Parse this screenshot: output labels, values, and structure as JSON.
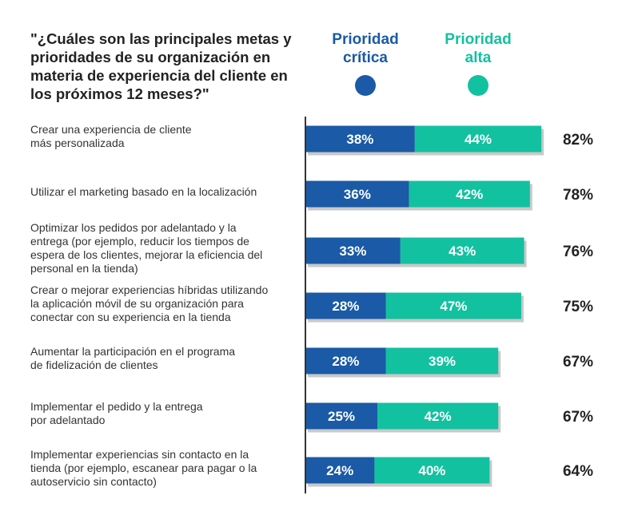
{
  "title": "\"¿Cuáles son las principales metas y prioridades de su organización en materia de experiencia del cliente en los próximos 12 meses?\"",
  "legend": [
    {
      "label_line1": "Prioridad",
      "label_line2": "crítica",
      "color": "#1a5aa6"
    },
    {
      "label_line1": "Prioridad",
      "label_line2": "alta",
      "color": "#12c1a0"
    }
  ],
  "chart_data": {
    "type": "bar",
    "orientation": "horizontal",
    "stacked": true,
    "categories": [
      "Crear una experiencia de cliente más personalizada",
      "Utilizar el marketing basado en la localización",
      "Optimizar los pedidos por adelantado y la entrega (por ejemplo, reducir los tiempos de espera de los clientes, mejorar la eficiencia del personal en la tienda)",
      "Crear o mejorar experiencias híbridas utilizando la aplicación móvil de su organización para conectar con su experiencia en la tienda",
      "Aumentar la participación en el programa de fidelización de clientes",
      "Implementar el pedido y la entrega por adelantado",
      "Implementar experiencias sin contacto en la tienda (por ejemplo, escanear para pagar o la autoservicio sin contacto)"
    ],
    "series": [
      {
        "name": "Prioridad crítica",
        "values": [
          38,
          36,
          33,
          28,
          28,
          25,
          24
        ],
        "color": "#1a5aa6"
      },
      {
        "name": "Prioridad alta",
        "values": [
          44,
          42,
          43,
          47,
          39,
          42,
          40
        ],
        "color": "#12c1a0"
      }
    ],
    "totals": [
      82,
      78,
      76,
      75,
      67,
      67,
      64
    ],
    "unit": "%",
    "grid": false,
    "legend_position": "top-right"
  },
  "row_labels": [
    [
      "Crear una experiencia de cliente",
      "más personalizada"
    ],
    [
      "Utilizar el marketing basado en la localización"
    ],
    [
      "Optimizar los pedidos por adelantado y la",
      "entrega (por ejemplo, reducir los tiempos de",
      "espera de los clientes, mejorar la eficiencia del",
      "personal en la tienda)"
    ],
    [
      "Crear o mejorar experiencias híbridas utilizando",
      "la aplicación móvil de su organización para",
      "conectar con su experiencia en la tienda"
    ],
    [
      "Aumentar la participación en el programa",
      "de fidelización de clientes"
    ],
    [
      "Implementar el pedido y la entrega",
      "por adelantado"
    ],
    [
      "Implementar experiencias sin contacto en la",
      "tienda (por ejemplo, escanear para pagar o la",
      "autoservicio sin contacto)"
    ]
  ]
}
